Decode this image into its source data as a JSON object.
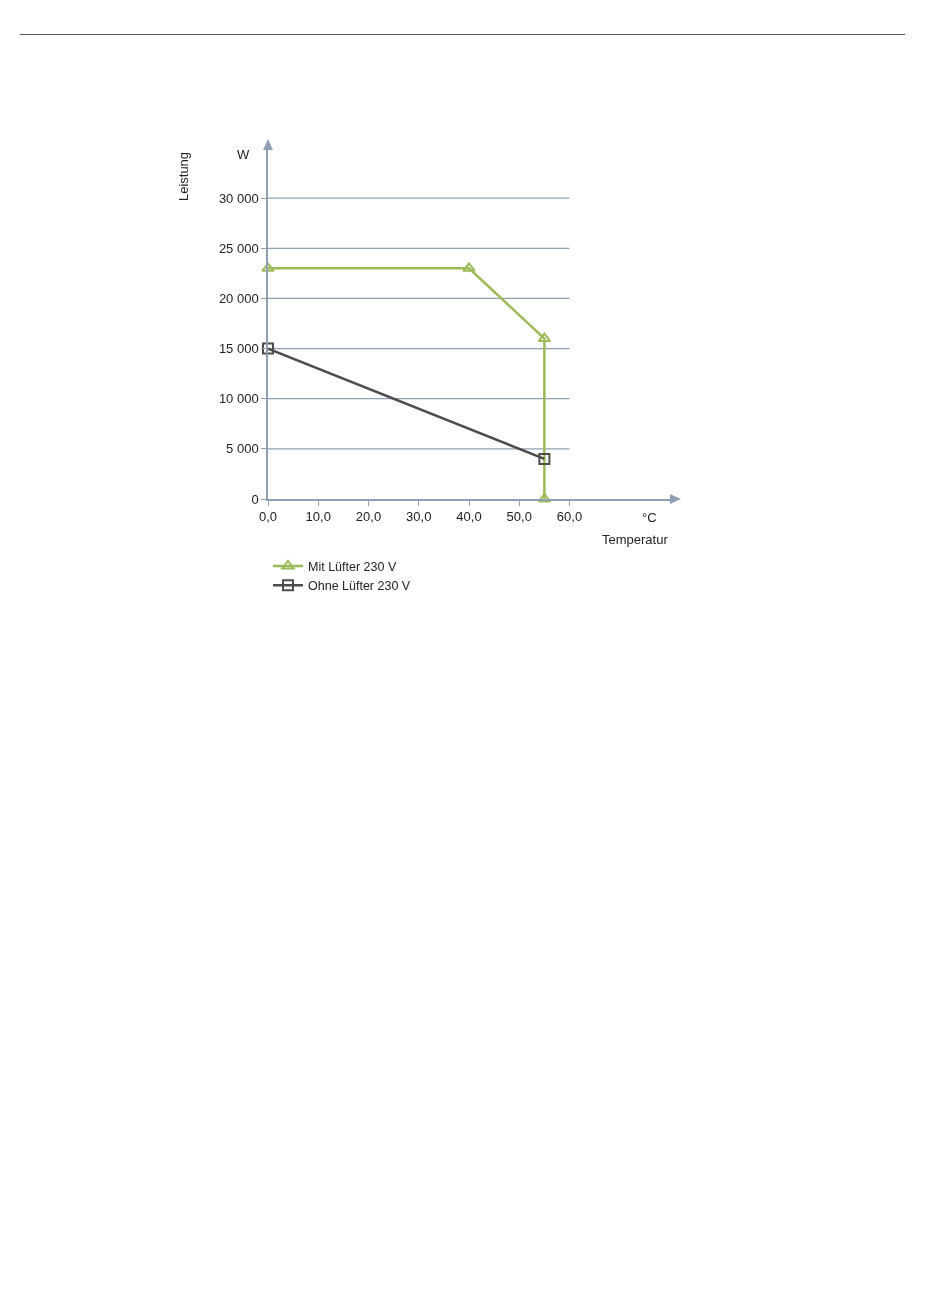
{
  "chart_data": {
    "type": "line",
    "xlabel": "Temperatur",
    "ylabel": "Leistung",
    "annotations": [
      "W",
      "°C"
    ],
    "xlim": [
      0,
      80
    ],
    "xticks": [
      {
        "value": 0,
        "label": "0,0"
      },
      {
        "value": 10,
        "label": "10,0"
      },
      {
        "value": 20,
        "label": "20,0"
      },
      {
        "value": 30,
        "label": "30,0"
      },
      {
        "value": 40,
        "label": "40,0"
      },
      {
        "value": 50,
        "label": "50,0"
      },
      {
        "value": 60,
        "label": "60,0"
      }
    ],
    "ylim": [
      0,
      34800
    ],
    "yticks": [
      {
        "value": 0,
        "label": "0"
      },
      {
        "value": 5000,
        "label": "5 000"
      },
      {
        "value": 10000,
        "label": "10 000"
      },
      {
        "value": 15000,
        "label": "15 000"
      },
      {
        "value": 20000,
        "label": "20 000"
      },
      {
        "value": 25000,
        "label": "25 000"
      },
      {
        "value": 30000,
        "label": "30 000"
      }
    ],
    "grid": "y",
    "legend": "bottom left",
    "series": [
      {
        "name": "Mit Lüfter 230 V",
        "color": "#9bbb59",
        "marker": "triangle",
        "x": [
          0,
          40,
          55,
          55
        ],
        "values": [
          23000,
          23000,
          16000,
          0
        ]
      },
      {
        "name": "Ohne Lüfter 230 V",
        "color": "#4d4d4d",
        "marker": "square",
        "x": [
          0,
          55
        ],
        "values": [
          15000,
          4000
        ]
      }
    ]
  }
}
